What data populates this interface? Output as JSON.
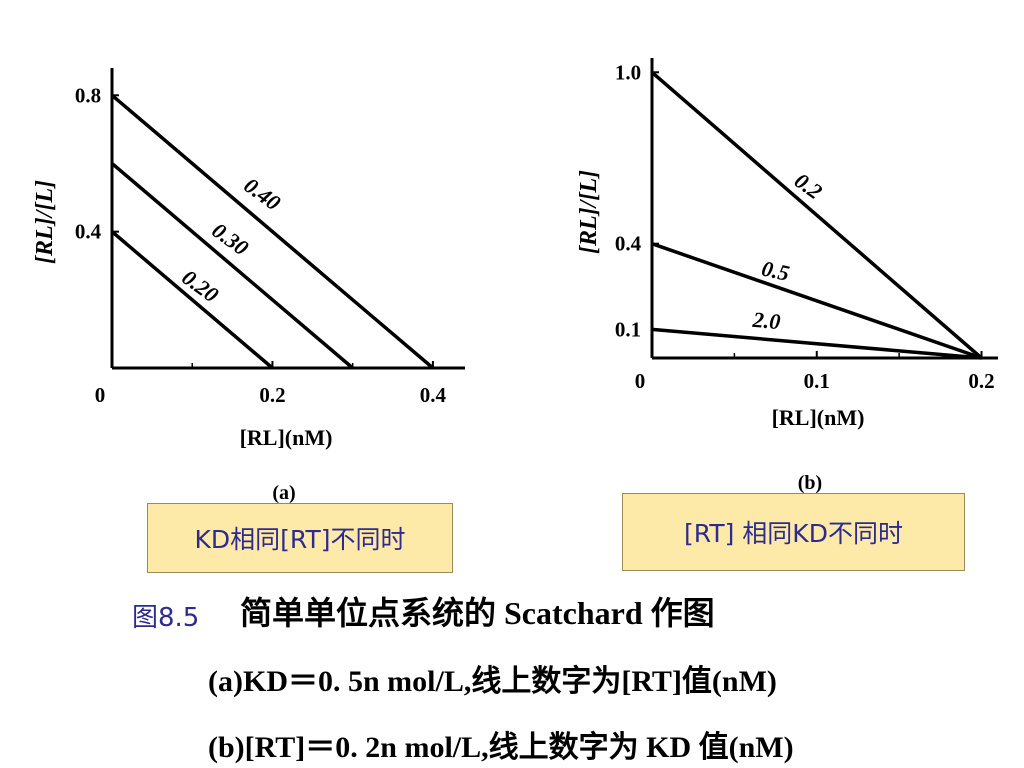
{
  "chart_data": [
    {
      "type": "line",
      "panel_label": "(a)",
      "xlabel": "[RL](nM)",
      "ylabel": "[RL]/[L]",
      "x_ticks": [
        {
          "value": 0,
          "label": "0"
        },
        {
          "value": 0.2,
          "label": "0.2"
        },
        {
          "value": 0.4,
          "label": "0.4"
        }
      ],
      "y_ticks": [
        {
          "value": 0.4,
          "label": "0.4"
        },
        {
          "value": 0.8,
          "label": "0.8"
        }
      ],
      "xlim": [
        0,
        0.44
      ],
      "ylim": [
        0,
        0.88
      ],
      "series": [
        {
          "name": "0.40",
          "x": [
            0,
            0.4
          ],
          "y": [
            0.8,
            0
          ]
        },
        {
          "name": "0.30",
          "x": [
            0,
            0.3
          ],
          "y": [
            0.6,
            0
          ]
        },
        {
          "name": "0.20",
          "x": [
            0,
            0.2
          ],
          "y": [
            0.4,
            0
          ]
        }
      ]
    },
    {
      "type": "line",
      "panel_label": "(b)",
      "xlabel": "[RL](nM)",
      "ylabel": "[RL]/[L]",
      "x_ticks": [
        {
          "value": 0,
          "label": "0"
        },
        {
          "value": 0.1,
          "label": "0.1"
        },
        {
          "value": 0.2,
          "label": "0.2"
        }
      ],
      "y_ticks": [
        {
          "value": 0.1,
          "label": "0.1"
        },
        {
          "value": 0.4,
          "label": "0.4"
        },
        {
          "value": 1.0,
          "label": "1.0"
        }
      ],
      "xlim": [
        0,
        0.21
      ],
      "ylim": [
        0,
        1.05
      ],
      "series": [
        {
          "name": "0.2",
          "x": [
            0,
            0.2
          ],
          "y": [
            1.0,
            0
          ]
        },
        {
          "name": "0.5",
          "x": [
            0,
            0.2
          ],
          "y": [
            0.4,
            0
          ]
        },
        {
          "name": "2.0",
          "x": [
            0,
            0.2
          ],
          "y": [
            0.1,
            0
          ]
        }
      ]
    }
  ],
  "boxes": {
    "a": "KD相同[RT]不同时",
    "b": "[RT] 相同KD不同时"
  },
  "caption": {
    "fig_label": "图8.5",
    "title": "简单单位点系统的 Scatchard 作图",
    "line_a": "(a)KD＝0. 5n mol/L,线上数字为[RT]值(nM)",
    "line_b": "(b)[RT]＝0. 2n mol/L,线上数字为 KD 值(nM)"
  }
}
